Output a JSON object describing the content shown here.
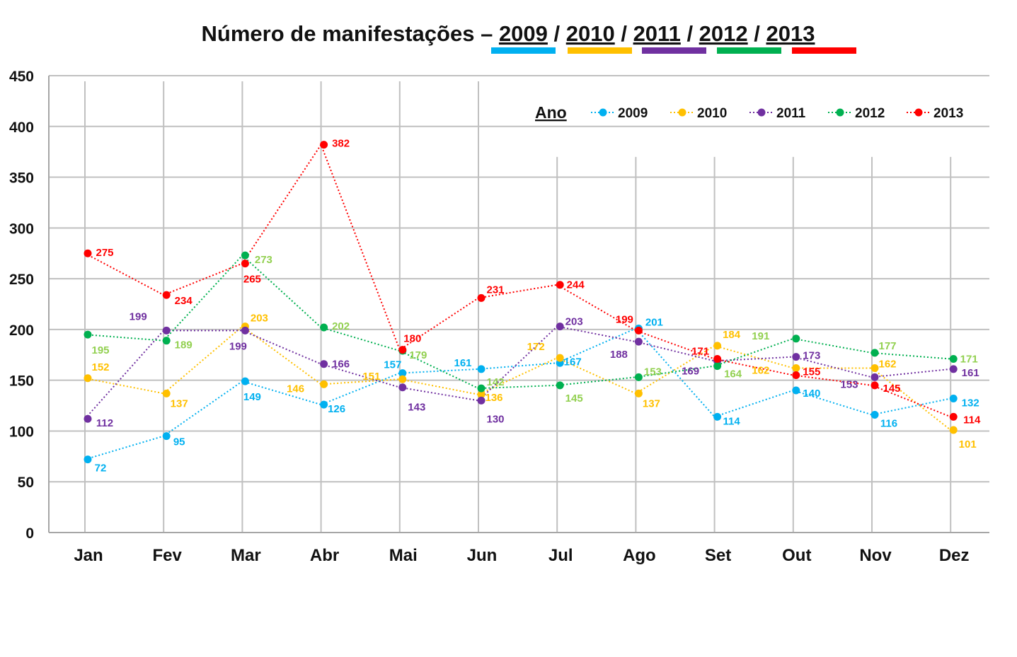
{
  "chart_data": {
    "type": "line",
    "title": {
      "prefix": "Número de manifestações –",
      "years": [
        "2009",
        "2010",
        "2011",
        "2012",
        "2013"
      ],
      "separator": "/"
    },
    "categories": [
      "Jan",
      "Fev",
      "Mar",
      "Abr",
      "Mai",
      "Jun",
      "Jul",
      "Ago",
      "Set",
      "Out",
      "Nov",
      "Dez"
    ],
    "ylim": [
      0,
      450
    ],
    "yticks": [
      "0",
      "50",
      "100",
      "150",
      "200",
      "250",
      "300",
      "350",
      "400",
      "450"
    ],
    "grid": true,
    "legend": {
      "title": "Ano",
      "position": "top-right"
    },
    "series": [
      {
        "name": "2009",
        "color": "#00B0F0",
        "label_color": "#00B0F0",
        "values": [
          72,
          95,
          149,
          126,
          157,
          161,
          167,
          201,
          114,
          140,
          116,
          132
        ]
      },
      {
        "name": "2010",
        "color": "#FFC000",
        "label_color": "#FFC000",
        "values": [
          152,
          137,
          203,
          146,
          151,
          136,
          172,
          137,
          184,
          162,
          162,
          101
        ]
      },
      {
        "name": "2011",
        "color": "#7030A0",
        "label_color": "#7030A0",
        "values": [
          112,
          199,
          199,
          166,
          143,
          130,
          203,
          188,
          169,
          173,
          153,
          161
        ]
      },
      {
        "name": "2012",
        "color": "#00B050",
        "label_color": "#92D050",
        "values": [
          195,
          189,
          273,
          202,
          179,
          142,
          145,
          153,
          164,
          191,
          177,
          171
        ]
      },
      {
        "name": "2013",
        "color": "#FF0000",
        "label_color": "#FF0000",
        "values": [
          275,
          234,
          265,
          382,
          180,
          231,
          244,
          199,
          171,
          155,
          145,
          114
        ]
      }
    ]
  }
}
